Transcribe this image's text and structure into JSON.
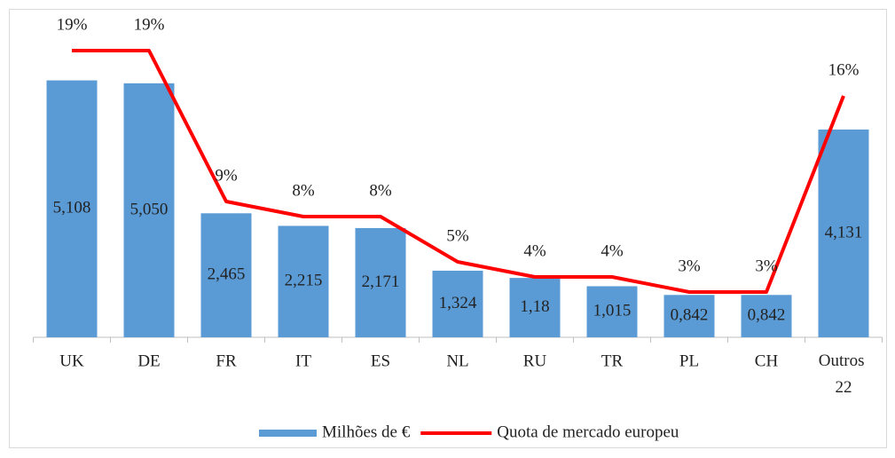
{
  "chart_data": {
    "type": "combo",
    "categories": [
      "UK",
      "DE",
      "FR",
      "IT",
      "ES",
      "NL",
      "RU",
      "TR",
      "PL",
      "CH",
      "Outros 22"
    ],
    "ylim": [
      0,
      6
    ],
    "y2lim": [
      0,
      20
    ],
    "legend": "bottom",
    "series": [
      {
        "name": "Milhões de €",
        "type": "bar",
        "color": "#5b9bd5",
        "values": [
          5.108,
          5.05,
          2.465,
          2.215,
          2.171,
          1.324,
          1.18,
          1.015,
          0.842,
          0.842,
          4.131
        ],
        "value_labels": [
          "5,108",
          "5,050",
          "2,465",
          "2,215",
          "2,171",
          "1,324",
          "1,18",
          "1,015",
          "0,842",
          "0,842",
          "4,131"
        ]
      },
      {
        "name": "Quota de mercado europeu",
        "type": "line",
        "axis": "y2",
        "color": "#ff0000",
        "values": [
          19,
          19,
          9,
          8,
          8,
          5,
          4,
          4,
          3,
          3,
          16
        ],
        "value_labels": [
          "19%",
          "19%",
          "9%",
          "8%",
          "8%",
          "5%",
          "4%",
          "4%",
          "3%",
          "3%",
          "16%"
        ]
      }
    ]
  }
}
